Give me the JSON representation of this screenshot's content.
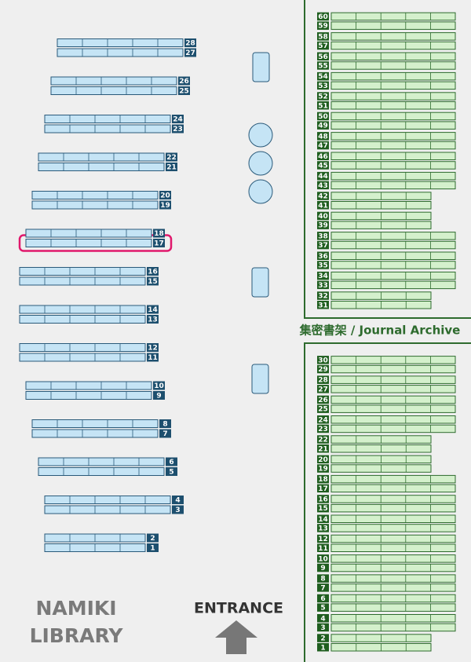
{
  "title": {
    "line1": "NAMIKI",
    "line2": "LIBRARY"
  },
  "entrance": "ENTRANCE",
  "archive_label": "集密書架 / Journal Archive",
  "highlighted_shelf": "17",
  "shelves": [
    "1",
    "2",
    "3",
    "4",
    "5",
    "6",
    "7",
    "8",
    "9",
    "10",
    "11",
    "12",
    "13",
    "14",
    "15",
    "16",
    "17",
    "18",
    "19",
    "20",
    "21",
    "22",
    "23",
    "24",
    "25",
    "26",
    "27",
    "28"
  ],
  "journal_upper": [
    "31",
    "32",
    "33",
    "34",
    "35",
    "36",
    "37",
    "38",
    "39",
    "40",
    "41",
    "42",
    "43",
    "44",
    "45",
    "46",
    "47",
    "48",
    "49",
    "50",
    "51",
    "52",
    "53",
    "54",
    "55",
    "56",
    "57",
    "58",
    "59",
    "60"
  ],
  "journal_lower": [
    "1",
    "2",
    "3",
    "4",
    "5",
    "6",
    "7",
    "8",
    "9",
    "10",
    "11",
    "12",
    "13",
    "14",
    "15",
    "16",
    "17",
    "18",
    "19",
    "20",
    "21",
    "22",
    "23",
    "24",
    "25",
    "26",
    "27",
    "28",
    "29",
    "30"
  ]
}
